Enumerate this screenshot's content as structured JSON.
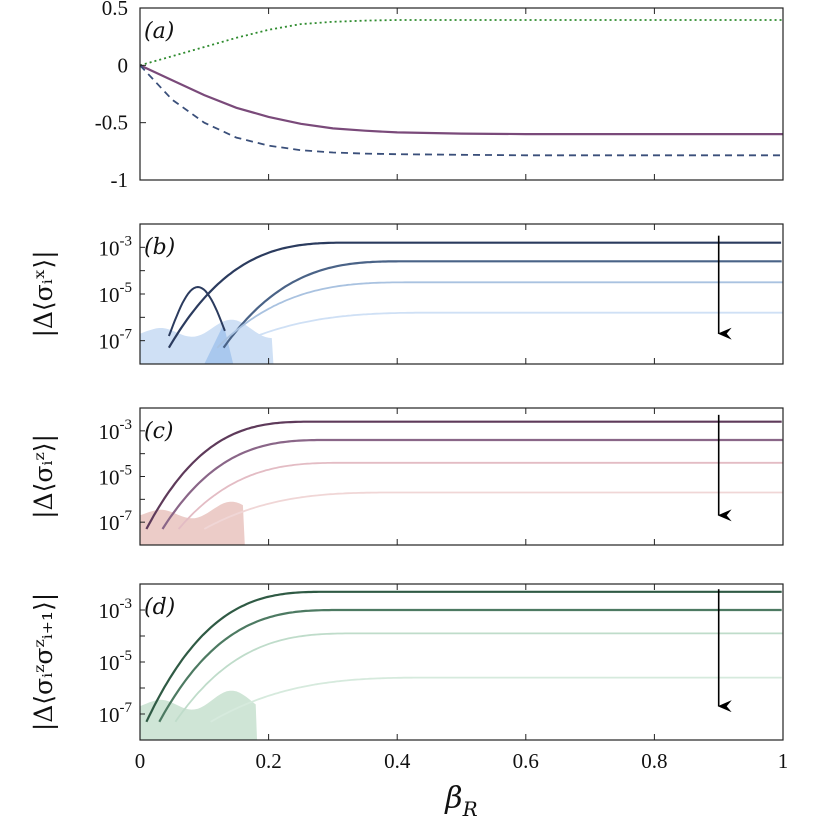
{
  "chart_data": [
    {
      "type": "line",
      "panel_label": "(a)",
      "xlim": [
        0,
        1
      ],
      "ylim": [
        -1,
        0.5
      ],
      "x_ticks": [
        "0",
        "0.2",
        "0.4",
        "0.6",
        "0.8",
        "1"
      ],
      "y_ticks": [
        "0.5",
        "0",
        "-0.5",
        "-1"
      ],
      "ylabel": "",
      "series": [
        {
          "name": "dotted-green",
          "style": "dotted",
          "color": "#2e8b2e",
          "x": [
            0,
            0.05,
            0.1,
            0.15,
            0.2,
            0.25,
            0.3,
            0.35,
            0.4,
            0.5,
            0.6,
            0.7,
            0.8,
            0.9,
            1.0
          ],
          "y": [
            0,
            0.08,
            0.16,
            0.24,
            0.31,
            0.36,
            0.38,
            0.39,
            0.395,
            0.395,
            0.395,
            0.395,
            0.395,
            0.395,
            0.395
          ]
        },
        {
          "name": "solid-purple",
          "style": "solid",
          "color": "#7a4a7a",
          "x": [
            0,
            0.05,
            0.1,
            0.15,
            0.2,
            0.25,
            0.3,
            0.35,
            0.4,
            0.5,
            0.6,
            0.7,
            0.8,
            0.9,
            1.0
          ],
          "y": [
            0,
            -0.13,
            -0.26,
            -0.37,
            -0.45,
            -0.51,
            -0.55,
            -0.57,
            -0.585,
            -0.595,
            -0.6,
            -0.6,
            -0.6,
            -0.6,
            -0.6
          ]
        },
        {
          "name": "dashed-blue",
          "style": "dashed",
          "color": "#3a4f7a",
          "x": [
            0,
            0.05,
            0.1,
            0.15,
            0.2,
            0.25,
            0.3,
            0.35,
            0.4,
            0.5,
            0.6,
            0.7,
            0.8,
            0.9,
            1.0
          ],
          "y": [
            0,
            -0.3,
            -0.5,
            -0.63,
            -0.7,
            -0.74,
            -0.76,
            -0.77,
            -0.775,
            -0.78,
            -0.785,
            -0.785,
            -0.785,
            -0.785,
            -0.785
          ]
        }
      ]
    },
    {
      "type": "line",
      "panel_label": "(b)",
      "yscale": "log",
      "xlim": [
        0,
        1
      ],
      "ylim_log10": [
        -8,
        -2
      ],
      "x_ticks": [
        "0",
        "0.2",
        "0.4",
        "0.6",
        "0.8",
        "1"
      ],
      "y_ticks": [
        {
          "base": "10",
          "exp": "-3"
        },
        {
          "base": "10",
          "exp": "-5"
        },
        {
          "base": "10",
          "exp": "-7"
        }
      ],
      "ylabel": "|Δ⟨σᵢˣ⟩|",
      "arrow": {
        "x": 0.9,
        "from_log10": -2.5,
        "to_log10": -6.7
      },
      "series": [
        {
          "name": "level-1",
          "color": "#2b3b5e",
          "plateau_log10": -2.8,
          "rise": 0.13,
          "start": 0.045,
          "dip": 0.13
        },
        {
          "name": "level-2",
          "color": "#4a6387",
          "plateau_log10": -3.6,
          "rise": 0.13,
          "start": 0.13
        },
        {
          "name": "level-3",
          "color": "#a9c2e0",
          "plateau_log10": -4.5,
          "rise": 0.14,
          "start": 0.12
        },
        {
          "name": "level-4",
          "color": "#cfe0f5",
          "plateau_log10": -5.8,
          "rise": 0.15,
          "start": 0.14
        }
      ],
      "fill_color": "#cfe0f5",
      "fill_color_dark": "#a9c8ee"
    },
    {
      "type": "line",
      "panel_label": "(c)",
      "yscale": "log",
      "xlim": [
        0,
        1
      ],
      "ylim_log10": [
        -8,
        -2
      ],
      "x_ticks": [
        "0",
        "0.2",
        "0.4",
        "0.6",
        "0.8",
        "1"
      ],
      "y_ticks": [
        {
          "base": "10",
          "exp": "-3"
        },
        {
          "base": "10",
          "exp": "-5"
        },
        {
          "base": "10",
          "exp": "-7"
        }
      ],
      "ylabel": "|Δ⟨σᵢᶻ⟩|",
      "arrow": {
        "x": 0.9,
        "from_log10": -2.3,
        "to_log10": -6.7
      },
      "series": [
        {
          "name": "level-1",
          "color": "#5e3a5a",
          "plateau_log10": -2.6,
          "rise": 0.12,
          "start": 0.01
        },
        {
          "name": "level-2",
          "color": "#8a6688",
          "plateau_log10": -3.4,
          "rise": 0.12,
          "start": 0.035
        },
        {
          "name": "level-3",
          "color": "#e3bcc4",
          "plateau_log10": -4.4,
          "rise": 0.12,
          "start": 0.06
        },
        {
          "name": "level-4",
          "color": "#f0d6d6",
          "plateau_log10": -5.7,
          "rise": 0.14,
          "start": 0.1
        }
      ],
      "fill_color": "#ecccc8"
    },
    {
      "type": "line",
      "panel_label": "(d)",
      "yscale": "log",
      "xlim": [
        0,
        1
      ],
      "ylim_log10": [
        -8,
        -2
      ],
      "x_ticks": [
        "0",
        "0.2",
        "0.4",
        "0.6",
        "0.8",
        "1"
      ],
      "y_ticks": [
        {
          "base": "10",
          "exp": "-3"
        },
        {
          "base": "10",
          "exp": "-5"
        },
        {
          "base": "10",
          "exp": "-7"
        }
      ],
      "ylabel": "|Δ⟨σᵢᶻσᶻᵢ₊₁⟩|",
      "xlabel": "β",
      "xlabel_sub": "R",
      "arrow": {
        "x": 0.9,
        "from_log10": -2.2,
        "to_log10": -6.7
      },
      "series": [
        {
          "name": "level-1",
          "color": "#2f5a44",
          "plateau_log10": -2.3,
          "rise": 0.13,
          "start": 0.01
        },
        {
          "name": "level-2",
          "color": "#4d7a62",
          "plateau_log10": -3.0,
          "rise": 0.13,
          "start": 0.03
        },
        {
          "name": "level-3",
          "color": "#bfdcca",
          "plateau_log10": -3.9,
          "rise": 0.13,
          "start": 0.055
        },
        {
          "name": "level-4",
          "color": "#d6eadd",
          "plateau_log10": -5.6,
          "rise": 0.16,
          "start": 0.11
        }
      ],
      "fill_color": "#cfe5d6"
    }
  ]
}
